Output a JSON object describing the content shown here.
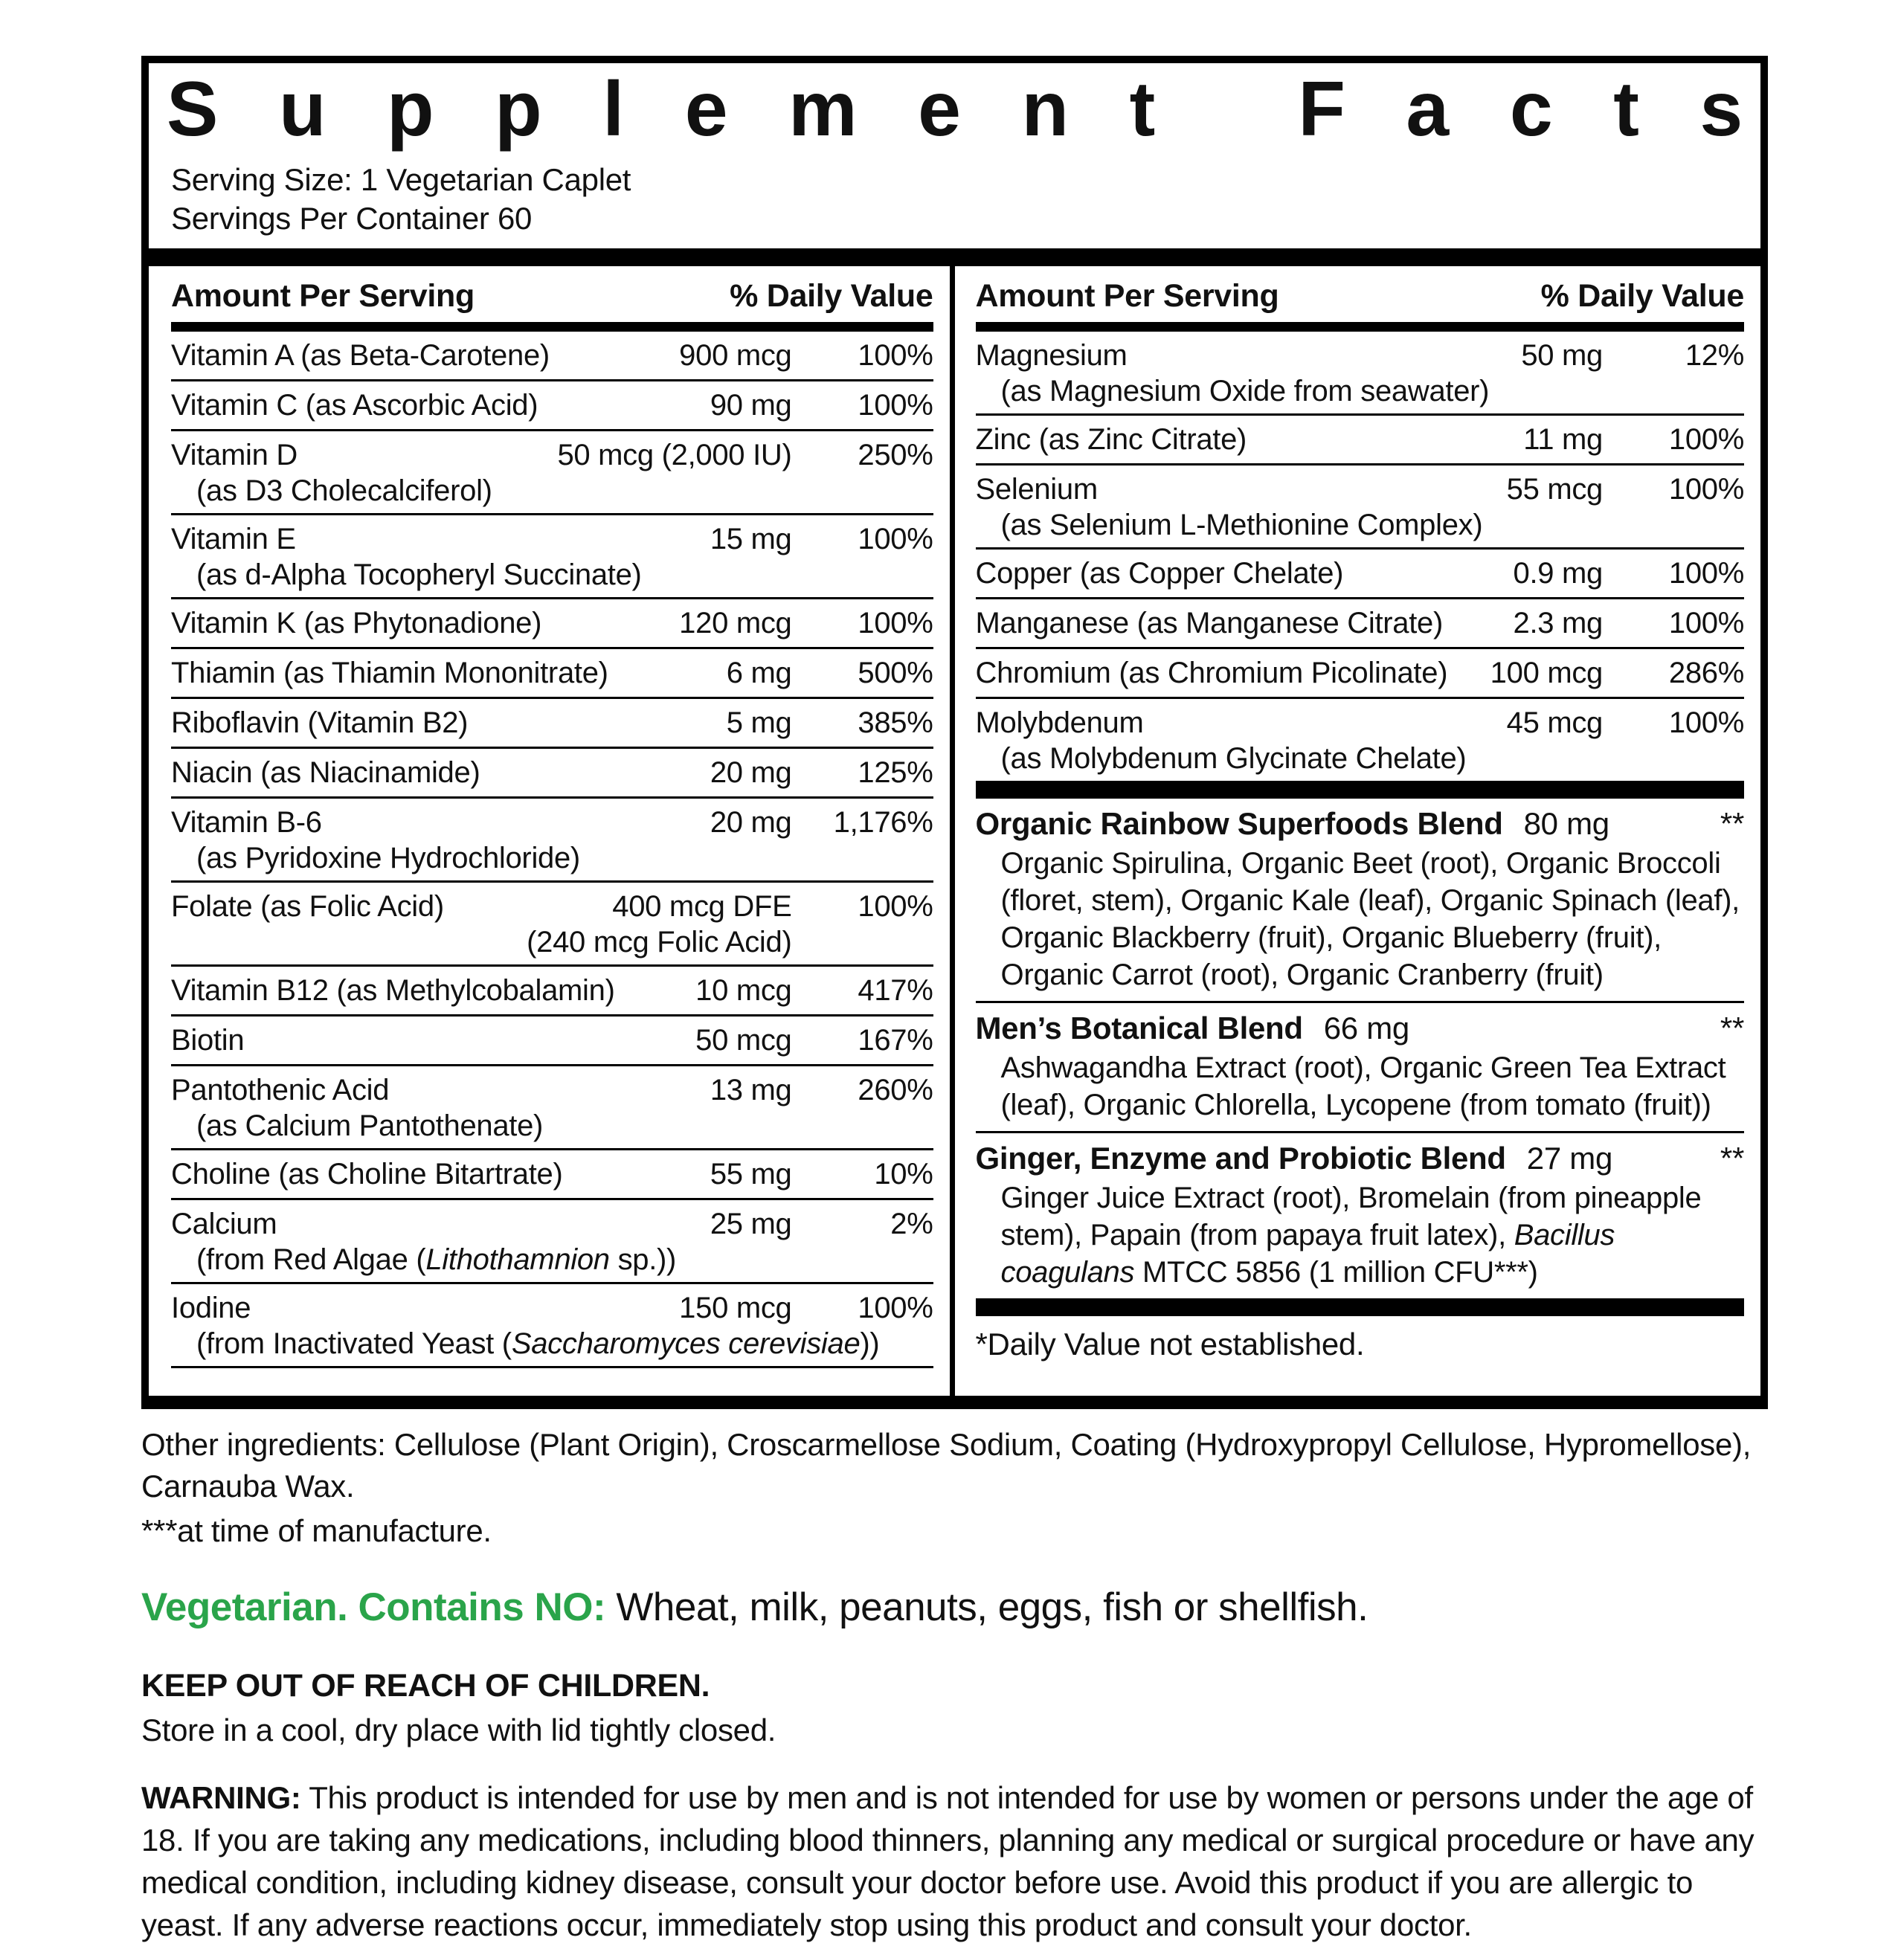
{
  "label": {
    "title": "Supplement Facts",
    "serving_size": "Serving Size: 1 Vegetarian Caplet",
    "servings_per_container": "Servings Per Container 60",
    "column_header": {
      "amount": "Amount Per Serving",
      "daily_value": "% Daily Value"
    },
    "left_rows": [
      {
        "name": "Vitamin A (as Beta-Carotene)",
        "amount": "900 mcg",
        "dv": "100%"
      },
      {
        "name": "Vitamin C (as Ascorbic Acid)",
        "amount": "90 mg",
        "dv": "100%"
      },
      {
        "name": "Vitamin D",
        "amount": "50 mcg (2,000 IU)",
        "dv": "250%",
        "sub": [
          {
            "t": "(as D3 Cholecalciferol)"
          }
        ]
      },
      {
        "name": "Vitamin E",
        "amount": "15 mg",
        "dv": "100%",
        "sub": [
          {
            "t": "(as d-Alpha Tocopheryl Succinate)"
          }
        ]
      },
      {
        "name": "Vitamin K (as Phytonadione)",
        "amount": "120 mcg",
        "dv": "100%"
      },
      {
        "name": "Thiamin (as Thiamin Mononitrate)",
        "amount": "6 mg",
        "dv": "500%"
      },
      {
        "name": "Riboflavin (Vitamin B2)",
        "amount": "5 mg",
        "dv": "385%"
      },
      {
        "name": "Niacin (as Niacinamide)",
        "amount": "20 mg",
        "dv": "125%"
      },
      {
        "name": "Vitamin B-6",
        "amount": "20 mg",
        "dv": "1,176%",
        "sub": [
          {
            "t": "(as Pyridoxine Hydrochloride)"
          }
        ]
      },
      {
        "name": "Folate (as Folic Acid)",
        "amount": "400 mcg DFE",
        "amount2": "(240 mcg Folic Acid)",
        "dv": "100%"
      },
      {
        "name": "Vitamin B12 (as Methylcobalamin)",
        "amount": "10 mcg",
        "dv": "417%"
      },
      {
        "name": "Biotin",
        "amount": "50 mcg",
        "dv": "167%"
      },
      {
        "name": "Pantothenic Acid",
        "amount": "13 mg",
        "dv": "260%",
        "sub": [
          {
            "t": "(as Calcium Pantothenate)"
          }
        ]
      },
      {
        "name": "Choline (as Choline Bitartrate)",
        "amount": "55 mg",
        "dv": "10%"
      },
      {
        "name": "Calcium",
        "amount": "25 mg",
        "dv": "2%",
        "sub": [
          {
            "t": "(from Red Algae ("
          },
          {
            "t": "Lithothamnion",
            "i": true
          },
          {
            "t": " sp.))"
          }
        ]
      },
      {
        "name": "Iodine",
        "amount": "150 mcg",
        "dv": "100%",
        "sub": [
          {
            "t": "(from Inactivated Yeast ("
          },
          {
            "t": "Saccharomyces cerevisiae",
            "i": true
          },
          {
            "t": "))"
          }
        ]
      }
    ],
    "right_rows": [
      {
        "name": "Magnesium",
        "amount": "50 mg",
        "dv": "12%",
        "sub": [
          {
            "t": "(as Magnesium Oxide from seawater)"
          }
        ]
      },
      {
        "name": "Zinc (as Zinc Citrate)",
        "amount": "11 mg",
        "dv": "100%"
      },
      {
        "name": "Selenium",
        "amount": "55 mcg",
        "dv": "100%",
        "sub": [
          {
            "t": "(as Selenium L-Methionine Complex)"
          }
        ]
      },
      {
        "name": "Copper (as Copper Chelate)",
        "amount": "0.9 mg",
        "dv": "100%"
      },
      {
        "name": "Manganese (as Manganese Citrate)",
        "amount": "2.3 mg",
        "dv": "100%"
      },
      {
        "name": "Chromium (as Chromium Picolinate)",
        "amount": "100 mcg",
        "dv": "286%"
      },
      {
        "name": "Molybdenum",
        "amount": "45 mcg",
        "dv": "100%",
        "sub": [
          {
            "t": "(as Molybdenum Glycinate Chelate)"
          }
        ]
      }
    ],
    "blends": [
      {
        "name": "Organic Rainbow Superfoods Blend",
        "amount": "80 mg",
        "dv": "**",
        "desc": [
          {
            "t": "Organic Spirulina, Organic Beet (root), Organic Broccoli (floret, stem), Organic Kale (leaf), Organic Spinach (leaf), Organic Blackberry (fruit), Organic Blueberry (fruit), Organic Carrot (root), Organic Cranberry (fruit)"
          }
        ]
      },
      {
        "name": "Men’s Botanical Blend",
        "amount": "66 mg",
        "dv": "**",
        "desc": [
          {
            "t": "Ashwagandha Extract (root), Organic Green Tea Extract (leaf), Organic Chlorella, Lycopene (from tomato (fruit))"
          }
        ]
      },
      {
        "name": "Ginger, Enzyme and Probiotic Blend",
        "amount": "27 mg",
        "dv": "**",
        "desc": [
          {
            "t": "Ginger Juice Extract (root), Bromelain (from pineapple stem), Papain (from papaya fruit latex), "
          },
          {
            "t": "Bacillus coagulans",
            "i": true
          },
          {
            "t": " MTCC 5856 (1 million CFU***)"
          }
        ]
      }
    ],
    "footnote": "*Daily Value not established."
  },
  "below": {
    "other_ingredients": "Other ingredients: Cellulose (Plant Origin), Croscarmellose Sodium, Coating (Hydroxypropyl Cellulose, Hypromellose), Carnauba Wax.",
    "manufacture_note": "***at time of manufacture.",
    "vegetarian_label": "Vegetarian. Contains NO:",
    "vegetarian_rest": "Wheat, milk, peanuts, eggs, fish or shellfish.",
    "keep_out": "KEEP OUT OF REACH OF CHILDREN.",
    "storage": "Store in a cool, dry place with lid tightly closed.",
    "warning_label": "WARNING:",
    "warning_text": "This product is intended for use by men and is not intended for use by women or persons under the age of 18. If you are taking any medications, including blood thinners, planning any medical or surgical procedure or have any medical condition, including kidney disease, consult your doctor before use. Avoid this product if you are allergic to yeast. If any adverse reactions occur, immediately stop using this product and consult your doctor."
  },
  "colors": {
    "green": "#2aa44a",
    "ink": "#111111"
  }
}
